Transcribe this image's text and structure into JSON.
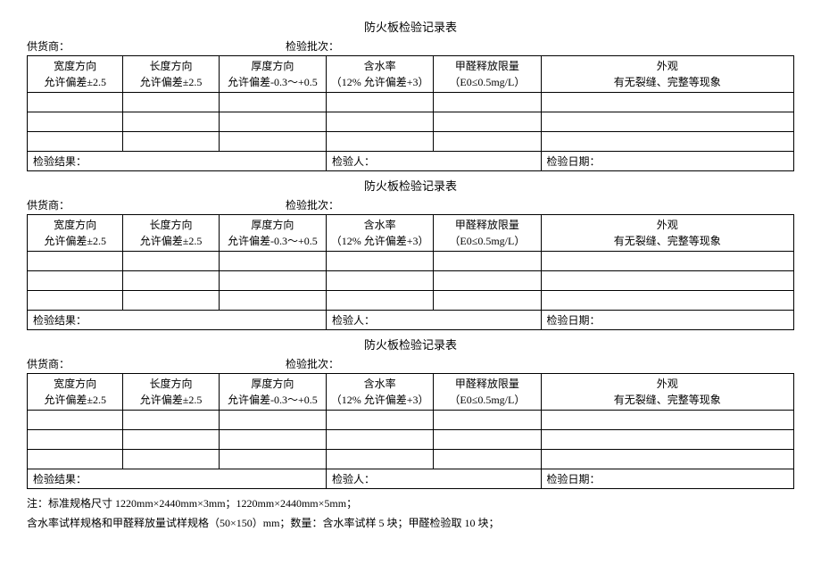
{
  "doc": {
    "title": "防火板检验记录表",
    "supplier_label": "供货商：",
    "batch_label": "检验批次：",
    "headers": {
      "width_dir": "宽度方向",
      "width_tol": "允许偏差±2.5",
      "length_dir": "长度方向",
      "length_tol": "允许偏差±2.5",
      "thick_dir": "厚度方向",
      "thick_tol": "允许偏差-0.3～+0.5",
      "moisture": "含水率",
      "moisture_tol": "（12% 允许偏差+3）",
      "formald": "甲醛释放限量",
      "formald_tol": "（E0≤0.5mg/L）",
      "appearance": "外观",
      "appearance_tol": "有无裂缝、完整等现象"
    },
    "result_label": "检验结果：",
    "inspector_label": "检验人：",
    "date_label": "检验日期：",
    "note1": "注：标准规格尺寸 1220mm×2440mm×3mm；1220mm×2440mm×5mm；",
    "note2": "含水率试样规格和甲醛释放量试样规格（50×150）mm；数量：含水率试样 5 块；甲醛检验取 10 块；"
  }
}
